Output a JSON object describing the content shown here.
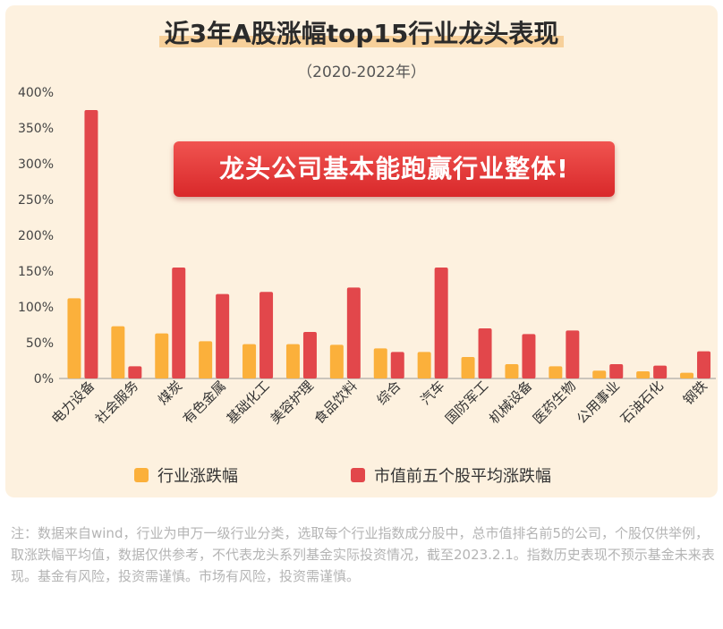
{
  "chart_data": {
    "type": "bar",
    "title": "近3年A股涨幅top15行业龙头表现",
    "subtitle": "（2020-2022年）",
    "annotation": "龙头公司基本能跑赢行业整体!",
    "categories": [
      "电力设备",
      "社会服务",
      "煤炭",
      "有色金属",
      "基础化工",
      "美容护理",
      "食品饮料",
      "综合",
      "汽车",
      "国防军工",
      "机械设备",
      "医药生物",
      "公用事业",
      "石油石化",
      "钢铁"
    ],
    "series": [
      {
        "name": "行业涨跌幅",
        "color": "#fbb03b",
        "values": [
          112,
          73,
          63,
          52,
          48,
          48,
          47,
          42,
          37,
          30,
          20,
          17,
          11,
          10,
          8
        ]
      },
      {
        "name": "市值前五个股平均涨跌幅",
        "color": "#e2474b",
        "values": [
          375,
          17,
          155,
          118,
          121,
          65,
          127,
          37,
          155,
          70,
          62,
          67,
          20,
          18,
          38
        ]
      }
    ],
    "yticks": [
      "0%",
      "50%",
      "100%",
      "150%",
      "200%",
      "250%",
      "300%",
      "350%",
      "400%"
    ],
    "ylim": [
      0,
      400
    ],
    "grid": false,
    "legend_position": "bottom"
  },
  "footnote": "注：数据来自wind，行业为申万一级行业分类，选取每个行业指数成分股中，总市值排名前5的公司，个股仅供举例，取涨跌幅平均值，数据仅供参考，不代表龙头系列基金实际投资情况，截至2023.2.1。指数历史表现不预示基金未来表现。基金有风险，投资需谨慎。市场有风险，投资需谨慎。"
}
